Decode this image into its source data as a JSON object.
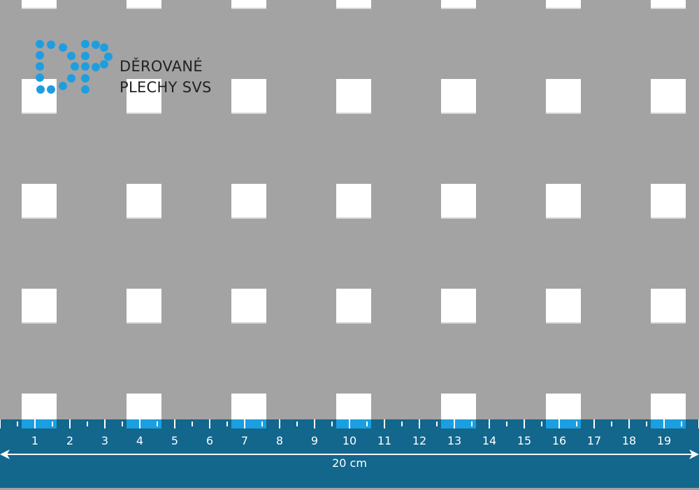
{
  "brand": {
    "name_line1": "DĚROVANÉ",
    "name_line2": "PLECHY SVS",
    "logo_letters": "PP",
    "dot_color": "#1e9ee0"
  },
  "ruler": {
    "labels": [
      "1",
      "2",
      "3",
      "4",
      "5",
      "6",
      "7",
      "8",
      "9",
      "10",
      "11",
      "12",
      "13",
      "14",
      "15",
      "16",
      "17",
      "18",
      "19"
    ],
    "total_length": "20 cm",
    "color": "#13668c",
    "overlap_color": "#1a9fe0"
  },
  "sheet": {
    "color": "#a3a3a3",
    "hole_shape": "square",
    "hole_color": "#ffffff"
  }
}
